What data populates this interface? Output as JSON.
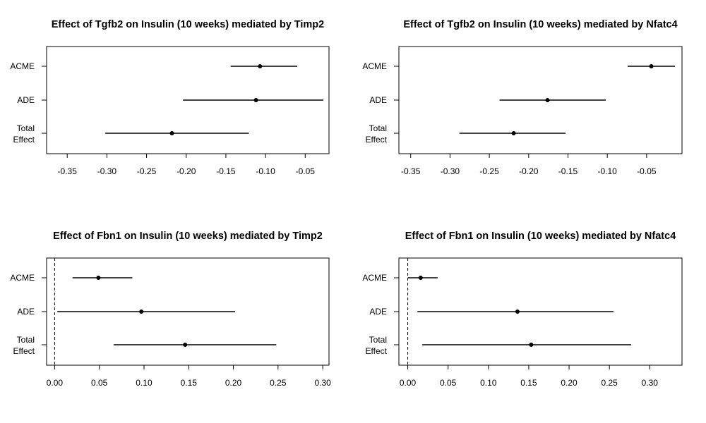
{
  "chart_data": [
    {
      "type": "forest",
      "title": "Effect of Tgfb2 on Insulin (10 weeks) mediated by Timp2",
      "categories": [
        "ACME",
        "ADE",
        "Total\nEffect"
      ],
      "estimate": [
        -0.107,
        -0.112,
        -0.218
      ],
      "ci_lower": [
        -0.144,
        -0.204,
        -0.302
      ],
      "ci_upper": [
        -0.06,
        -0.027,
        -0.121
      ],
      "xticks": [
        "-0.35",
        "-0.30",
        "-0.25",
        "-0.20",
        "-0.15",
        "-0.10",
        "-0.05"
      ],
      "xlim": [
        -0.376,
        -0.02
      ],
      "zero_line": false
    },
    {
      "type": "forest",
      "title": "Effect of Tgfb2 on Insulin (10 weeks) mediated by Nfatc4",
      "categories": [
        "ACME",
        "ADE",
        "Total\nEffect"
      ],
      "estimate": [
        -0.044,
        -0.176,
        -0.219
      ],
      "ci_lower": [
        -0.074,
        -0.237,
        -0.288
      ],
      "ci_upper": [
        -0.014,
        -0.102,
        -0.153
      ],
      "xticks": [
        "-0.35",
        "-0.30",
        "-0.25",
        "-0.20",
        "-0.15",
        "-0.10",
        "-0.05"
      ],
      "xlim": [
        -0.365,
        -0.005
      ],
      "zero_line": false
    },
    {
      "type": "forest",
      "title": "Effect of Fbn1 on Insulin (10 weeks) mediated by Timp2",
      "categories": [
        "ACME",
        "ADE",
        "Total\nEffect"
      ],
      "estimate": [
        0.049,
        0.097,
        0.146
      ],
      "ci_lower": [
        0.02,
        0.003,
        0.066
      ],
      "ci_upper": [
        0.087,
        0.202,
        0.248
      ],
      "xticks": [
        "0.00",
        "0.05",
        "0.10",
        "0.15",
        "0.20",
        "0.25",
        "0.30"
      ],
      "xlim": [
        -0.009,
        0.307
      ],
      "zero_line": true
    },
    {
      "type": "forest",
      "title": "Effect of Fbn1 on Insulin (10 weeks) mediated by Nfatc4",
      "categories": [
        "ACME",
        "ADE",
        "Total\nEffect"
      ],
      "estimate": [
        0.016,
        0.136,
        0.153
      ],
      "ci_lower": [
        0.0,
        0.012,
        0.018
      ],
      "ci_upper": [
        0.037,
        0.255,
        0.277
      ],
      "xticks": [
        "0.00",
        "0.05",
        "0.10",
        "0.15",
        "0.20",
        "0.25",
        "0.30"
      ],
      "xlim": [
        -0.011,
        0.34
      ],
      "zero_line": true
    }
  ]
}
